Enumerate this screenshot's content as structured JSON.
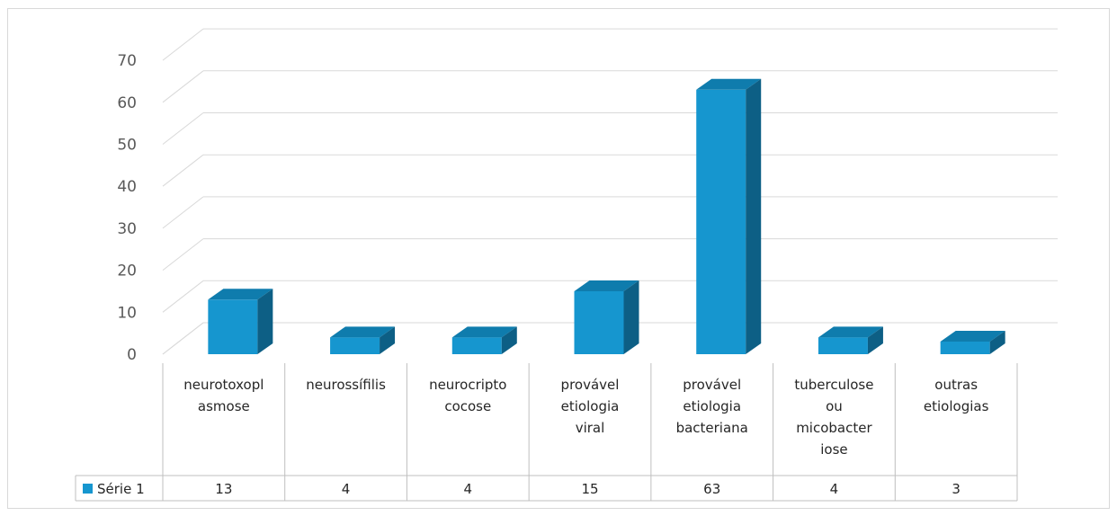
{
  "chart_data": {
    "type": "bar",
    "three_d": true,
    "categories": [
      [
        "neurotoxopl",
        "asmose"
      ],
      [
        "neurossífilis"
      ],
      [
        "neurocripto",
        "cocose"
      ],
      [
        "provável",
        "etiologia",
        "viral"
      ],
      [
        "provável",
        "etiologia",
        "bacteriana"
      ],
      [
        "tuberculose",
        "ou",
        "micobacter",
        "iose"
      ],
      [
        "outras",
        "etiologias"
      ]
    ],
    "series": [
      {
        "name": "Série 1",
        "values": [
          13,
          4,
          4,
          15,
          63,
          4,
          3
        ],
        "color": "#1696cf"
      }
    ],
    "yticks": [
      0,
      10,
      20,
      30,
      40,
      50,
      60,
      70
    ],
    "ylim": [
      0,
      75
    ],
    "grid": true,
    "data_table": true,
    "legend": "in-data-table",
    "colors": {
      "front": "#1696cf",
      "top": "#0f7cad",
      "side": "#0d5f85",
      "grid": "#d9d9d9"
    }
  }
}
